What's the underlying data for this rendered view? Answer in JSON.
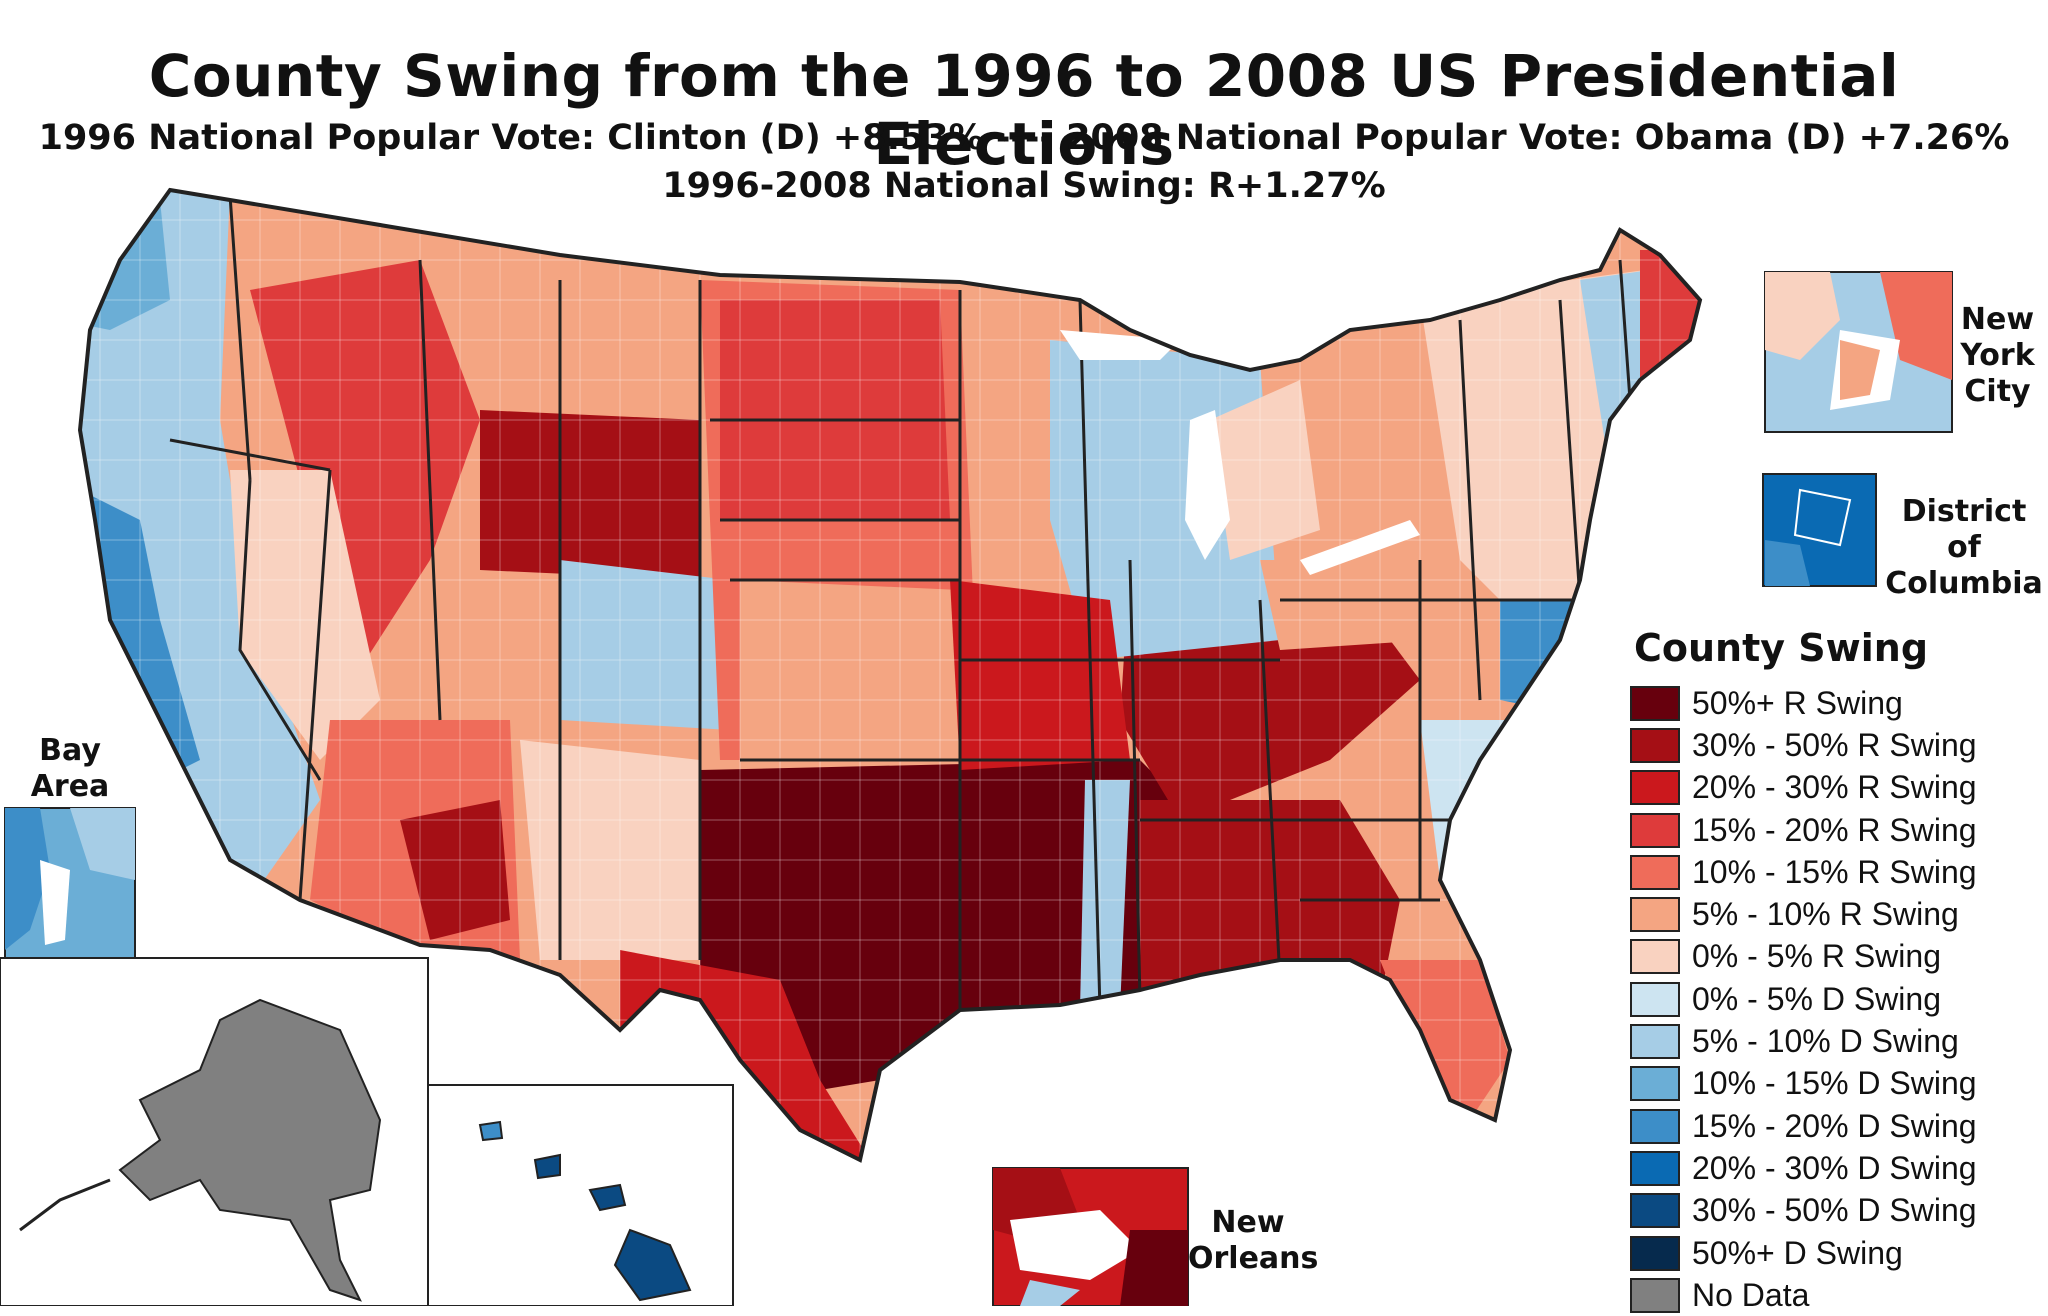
{
  "title": "County Swing from the 1996 to 2008 US Presidential Elections",
  "subtitle_1": "1996 National Popular Vote: Clinton (D) +8.53% ---- 2008 National Popular Vote: Obama (D) +7.26%",
  "subtitle_2": "1996-2008 National Swing: R+1.27%",
  "insets": {
    "new_york": "New York City",
    "dc": "District of Columbia",
    "bay_area": "Bay Area",
    "new_orleans": "New Orleans"
  },
  "legend": {
    "title": "County Swing",
    "items": [
      {
        "label": "50%+ R Swing",
        "color": "#67000d"
      },
      {
        "label": "30% - 50% R Swing",
        "color": "#a50f15"
      },
      {
        "label": "20% - 30% R Swing",
        "color": "#cb181d"
      },
      {
        "label": "15% - 20% R Swing",
        "color": "#de3b3b"
      },
      {
        "label": "10% - 15% R Swing",
        "color": "#ef6c5a"
      },
      {
        "label": "5% - 10% R Swing",
        "color": "#f4a582"
      },
      {
        "label": "0% - 5% R Swing",
        "color": "#f9d2c0"
      },
      {
        "label": "0% - 5% D Swing",
        "color": "#cde4f1"
      },
      {
        "label": "5% - 10% D Swing",
        "color": "#a6cde6"
      },
      {
        "label": "10% - 15% D Swing",
        "color": "#6baed6"
      },
      {
        "label": "15% - 20% D Swing",
        "color": "#3d8ec8"
      },
      {
        "label": "20% - 30% D Swing",
        "color": "#0a6ab3"
      },
      {
        "label": "30% - 50% D Swing",
        "color": "#0b4a82"
      },
      {
        "label": "50%+ D Swing",
        "color": "#062a4d"
      },
      {
        "label": "No Data",
        "color": "#808080"
      }
    ]
  }
}
